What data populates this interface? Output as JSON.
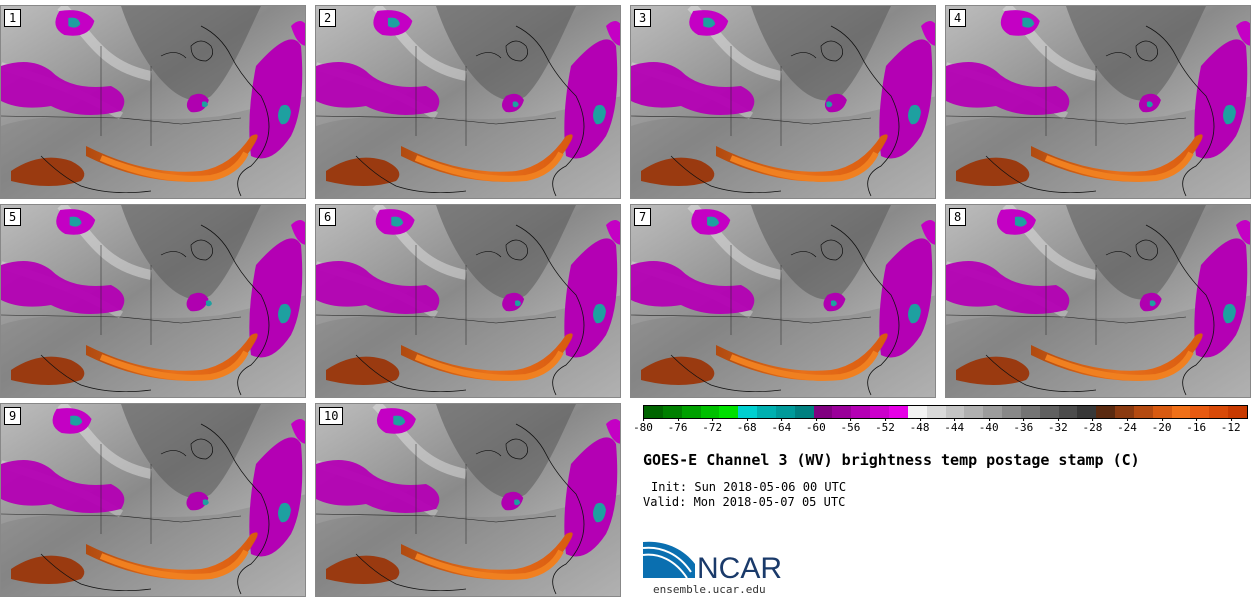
{
  "title": "GOES-E Channel 3 (WV) brightness temp postage stamp (C)",
  "init_text": "Init: Sun 2018-05-06 00 UTC",
  "valid_text": "Valid: Mon 2018-05-07 05 UTC",
  "logo_text": "NCAR",
  "url_text": "ensemble.ucar.edu",
  "members": [
    "1",
    "2",
    "3",
    "4",
    "5",
    "6",
    "7",
    "8",
    "9",
    "10"
  ],
  "colorbar": {
    "units": "C",
    "min": -80,
    "max": -10,
    "tick_labels": [
      "-80",
      "-76",
      "-72",
      "-68",
      "-64",
      "-60",
      "-56",
      "-52",
      "-48",
      "-44",
      "-40",
      "-36",
      "-32",
      "-28",
      "-24",
      "-20",
      "-16",
      "-12"
    ],
    "colors": [
      "#006400",
      "#007f00",
      "#00a000",
      "#00c000",
      "#00e000",
      "#00d0d0",
      "#00b0b0",
      "#009a9a",
      "#008080",
      "#800080",
      "#9a009a",
      "#b400b4",
      "#cc00cc",
      "#e600e6",
      "#f2f2f2",
      "#d9d9d9",
      "#c4c4c4",
      "#b0b0b0",
      "#9c9c9c",
      "#888888",
      "#747474",
      "#606060",
      "#4c4c4c",
      "#383838",
      "#5a2a10",
      "#8a3a10",
      "#b44a10",
      "#d85a10",
      "#f07018",
      "#e85a10",
      "#d84a08",
      "#c83a00"
    ]
  }
}
